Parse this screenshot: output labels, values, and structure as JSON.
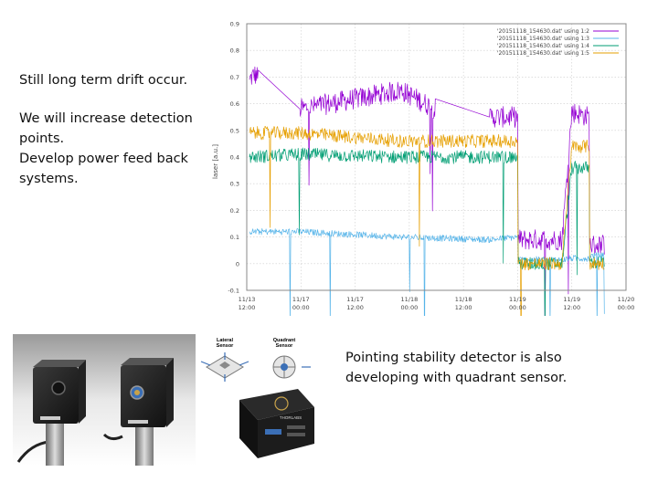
{
  "notes": {
    "drift": "Still long term drift occur.",
    "detect_1": "We will increase detection",
    "detect_2": "points.",
    "detect_3": "Develop power feed back",
    "detect_4": "systems.",
    "pointing_1": "Pointing stability detector is also",
    "pointing_2": "developing with quadrant sensor."
  },
  "photos": {
    "diagram_lateral": "Lateral",
    "diagram_lateral2": "Sensor",
    "diagram_quadrant": "Quadrant",
    "diagram_quadrant2": "Sensor",
    "brand": "THORLABS"
  },
  "chart_data": {
    "type": "line",
    "ylabel": "laser [a.u.]",
    "xlabel": "",
    "ylim": [
      -0.1,
      0.9
    ],
    "yticks": [
      "-0.1",
      "0",
      "0.1",
      "0.2",
      "0.3",
      "0.4",
      "0.5",
      "0.6",
      "0.7",
      "0.8",
      "0.9"
    ],
    "xticks": [
      {
        "top": "11/13",
        "bottom": "12:00"
      },
      {
        "top": "11/17",
        "bottom": "00:00"
      },
      {
        "top": "11/17",
        "bottom": "12:00"
      },
      {
        "top": "11/18",
        "bottom": "00:00"
      },
      {
        "top": "11/18",
        "bottom": "12:00"
      },
      {
        "top": "11/19",
        "bottom": "00:00"
      },
      {
        "top": "11/19",
        "bottom": "12:00"
      },
      {
        "top": "11/20",
        "bottom": "00:00"
      }
    ],
    "grid": true,
    "legend_position": "top-right",
    "series": [
      {
        "name": "'20151118_154630.dat' using 1:2",
        "color": "#9400d3",
        "noise": 0.04,
        "points": [
          [
            0.05,
            0.69
          ],
          [
            0.14,
            0.71
          ],
          [
            0.21,
            0.7
          ],
          [
            0.98,
            0.58
          ],
          [
            2.85,
            0.65
          ],
          [
            3.48,
            0.58
          ],
          [
            4.48,
            0.55
          ],
          [
            5.0,
            0.55
          ],
          [
            5.01,
            0.09
          ],
          [
            5.82,
            0.09
          ],
          [
            6.0,
            0.57
          ],
          [
            6.32,
            0.55
          ],
          [
            6.33,
            0.07
          ],
          [
            6.6,
            0.07
          ]
        ],
        "gaps": [
          [
            0.21,
            0.98
          ],
          [
            3.48,
            4.48
          ]
        ]
      },
      {
        "name": "'20151118_154630.dat' using 1:3",
        "color": "#56b4e9",
        "noise": 0.012,
        "points": [
          [
            0.05,
            0.12
          ],
          [
            0.98,
            0.12
          ],
          [
            2.85,
            0.1
          ],
          [
            4.48,
            0.09
          ],
          [
            5.0,
            0.1
          ],
          [
            5.01,
            0.015
          ],
          [
            5.82,
            0.015
          ],
          [
            6.0,
            0.02
          ],
          [
            6.32,
            0.02
          ],
          [
            6.33,
            0.03
          ],
          [
            6.6,
            0.03
          ]
        ],
        "gaps": []
      },
      {
        "name": "'20151118_154630.dat' using 1:4",
        "color": "#009e73",
        "noise": 0.025,
        "points": [
          [
            0.05,
            0.4
          ],
          [
            0.98,
            0.41
          ],
          [
            2.85,
            0.4
          ],
          [
            4.48,
            0.4
          ],
          [
            5.0,
            0.4
          ],
          [
            5.01,
            0.0
          ],
          [
            5.82,
            0.0
          ],
          [
            6.0,
            0.36
          ],
          [
            6.32,
            0.36
          ],
          [
            6.33,
            0.005
          ],
          [
            6.6,
            0.005
          ]
        ],
        "gaps": []
      },
      {
        "name": "'20151118_154630.dat' using 1:5",
        "color": "#e69f00",
        "noise": 0.025,
        "points": [
          [
            0.05,
            0.49
          ],
          [
            0.98,
            0.49
          ],
          [
            2.85,
            0.46
          ],
          [
            4.48,
            0.46
          ],
          [
            5.0,
            0.46
          ],
          [
            5.01,
            0.0
          ],
          [
            5.82,
            0.0
          ],
          [
            6.0,
            0.44
          ],
          [
            6.32,
            0.44
          ],
          [
            6.33,
            0.0
          ],
          [
            6.6,
            0.0
          ]
        ],
        "gaps": []
      }
    ]
  }
}
